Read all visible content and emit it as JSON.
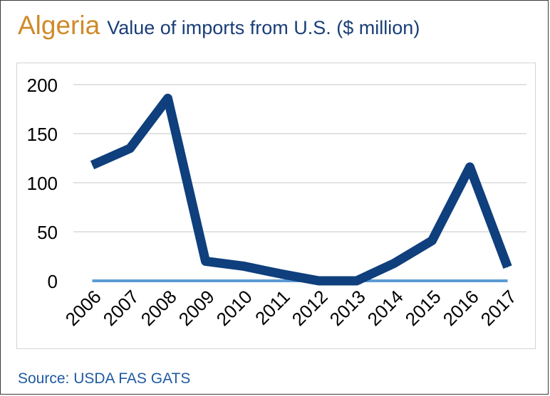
{
  "header": {
    "country": "Algeria",
    "subtitle": "Value of imports from U.S. ($ million)"
  },
  "footer": {
    "source": "Source: USDA FAS GATS"
  },
  "colors": {
    "country_title": "#d08a2a",
    "subtitle": "#1a3f78",
    "series_line": "#0f3f7c",
    "zero_line": "#5b9bd5",
    "gridline": "#d9d9d9",
    "source_text": "#1f5aa0"
  },
  "chart_data": {
    "type": "line",
    "title": "Value of imports from U.S. ($ million)",
    "xlabel": "",
    "ylabel": "",
    "x": [
      "2006",
      "2007",
      "2008",
      "2009",
      "2010",
      "2011",
      "2012",
      "2013",
      "2014",
      "2015",
      "2016",
      "2017"
    ],
    "series": [
      {
        "values": [
          118,
          135,
          186,
          20,
          15,
          7,
          0,
          0,
          18,
          41,
          116,
          14
        ]
      }
    ],
    "ylim": [
      0,
      200
    ],
    "yticks": [
      0,
      50,
      100,
      150,
      200
    ],
    "grid": true,
    "legend": "none"
  }
}
